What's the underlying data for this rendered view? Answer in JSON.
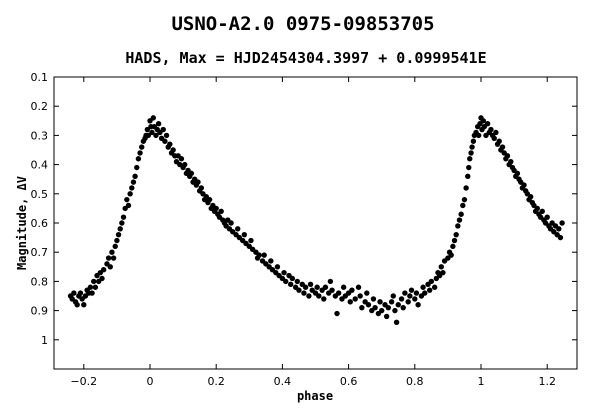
{
  "chart_data": {
    "type": "scatter",
    "title": "USNO-A2.0 0975-09853705",
    "subtitle": "HADS, Max = HJD2454304.3997 + 0.0999541E",
    "xlabel": "phase",
    "ylabel": "Magnitude, ΔV",
    "xlim": [
      -0.29,
      1.29
    ],
    "ylim": [
      0.1,
      1.1
    ],
    "y_inverted": true,
    "grid": false,
    "legend": "none",
    "marker_color": "#000000",
    "x_ticks": [
      -0.2,
      0,
      0.2,
      0.4,
      0.6,
      0.8,
      1,
      1.2
    ],
    "x_tick_labels": [
      "−0.2",
      "0",
      "0.2",
      "0.4",
      "0.6",
      "0.8",
      "1",
      "1.2"
    ],
    "y_ticks": [
      0.1,
      0.2,
      0.3,
      0.4,
      0.5,
      0.6,
      0.7,
      0.8,
      0.9,
      1
    ],
    "y_tick_labels": [
      "0.1",
      "0.2",
      "0.3",
      "0.4",
      "0.5",
      "0.6",
      "0.7",
      "0.8",
      "0.9",
      "1"
    ],
    "series": [
      {
        "points": [
          [
            -0.24,
            0.85
          ],
          [
            -0.235,
            0.86
          ],
          [
            -0.23,
            0.84
          ],
          [
            -0.225,
            0.87
          ],
          [
            -0.22,
            0.88
          ],
          [
            -0.215,
            0.85
          ],
          [
            -0.21,
            0.84
          ],
          [
            -0.205,
            0.86
          ],
          [
            -0.2,
            0.88
          ],
          [
            -0.195,
            0.85
          ],
          [
            -0.19,
            0.83
          ],
          [
            -0.185,
            0.84
          ],
          [
            -0.18,
            0.82
          ],
          [
            -0.175,
            0.84
          ],
          [
            -0.17,
            0.8
          ],
          [
            -0.165,
            0.82
          ],
          [
            -0.16,
            0.78
          ],
          [
            -0.155,
            0.8
          ],
          [
            -0.15,
            0.77
          ],
          [
            -0.145,
            0.79
          ],
          [
            -0.14,
            0.76
          ],
          [
            -0.13,
            0.74
          ],
          [
            -0.125,
            0.72
          ],
          [
            -0.12,
            0.75
          ],
          [
            -0.115,
            0.7
          ],
          [
            -0.11,
            0.72
          ],
          [
            -0.105,
            0.68
          ],
          [
            -0.1,
            0.66
          ],
          [
            -0.095,
            0.64
          ],
          [
            -0.09,
            0.62
          ],
          [
            -0.085,
            0.6
          ],
          [
            -0.08,
            0.58
          ],
          [
            -0.075,
            0.55
          ],
          [
            -0.07,
            0.52
          ],
          [
            -0.065,
            0.54
          ],
          [
            -0.06,
            0.5
          ],
          [
            -0.055,
            0.48
          ],
          [
            -0.05,
            0.46
          ],
          [
            -0.045,
            0.44
          ],
          [
            -0.04,
            0.41
          ],
          [
            -0.035,
            0.38
          ],
          [
            -0.03,
            0.36
          ],
          [
            -0.025,
            0.34
          ],
          [
            -0.02,
            0.32
          ],
          [
            -0.015,
            0.31
          ],
          [
            -0.012,
            0.3
          ],
          [
            -0.008,
            0.28
          ],
          [
            -0.005,
            0.3
          ],
          [
            0.0,
            0.25
          ],
          [
            0.003,
            0.27
          ],
          [
            0.006,
            0.29
          ],
          [
            0.01,
            0.24
          ],
          [
            0.013,
            0.27
          ],
          [
            0.018,
            0.3
          ],
          [
            0.022,
            0.28
          ],
          [
            0.026,
            0.26
          ],
          [
            0.03,
            0.29
          ],
          [
            0.035,
            0.31
          ],
          [
            0.04,
            0.28
          ],
          [
            0.045,
            0.32
          ],
          [
            0.05,
            0.3
          ],
          [
            0.055,
            0.34
          ],
          [
            0.06,
            0.33
          ],
          [
            0.065,
            0.36
          ],
          [
            0.07,
            0.35
          ],
          [
            0.075,
            0.37
          ],
          [
            0.08,
            0.39
          ],
          [
            0.085,
            0.37
          ],
          [
            0.09,
            0.4
          ],
          [
            0.095,
            0.38
          ],
          [
            0.1,
            0.41
          ],
          [
            0.105,
            0.4
          ],
          [
            0.11,
            0.43
          ],
          [
            0.115,
            0.42
          ],
          [
            0.12,
            0.44
          ],
          [
            0.125,
            0.43
          ],
          [
            0.13,
            0.46
          ],
          [
            0.135,
            0.45
          ],
          [
            0.14,
            0.47
          ],
          [
            0.145,
            0.46
          ],
          [
            0.15,
            0.49
          ],
          [
            0.155,
            0.48
          ],
          [
            0.16,
            0.5
          ],
          [
            0.165,
            0.52
          ],
          [
            0.17,
            0.51
          ],
          [
            0.175,
            0.53
          ],
          [
            0.18,
            0.52
          ],
          [
            0.185,
            0.55
          ],
          [
            0.19,
            0.54
          ],
          [
            0.195,
            0.56
          ],
          [
            0.2,
            0.55
          ],
          [
            0.205,
            0.57
          ],
          [
            0.21,
            0.58
          ],
          [
            0.215,
            0.56
          ],
          [
            0.22,
            0.59
          ],
          [
            0.225,
            0.6
          ],
          [
            0.23,
            0.61
          ],
          [
            0.235,
            0.59
          ],
          [
            0.24,
            0.62
          ],
          [
            0.245,
            0.6
          ],
          [
            0.25,
            0.63
          ],
          [
            0.26,
            0.64
          ],
          [
            0.265,
            0.62
          ],
          [
            0.27,
            0.65
          ],
          [
            0.28,
            0.66
          ],
          [
            0.285,
            0.64
          ],
          [
            0.29,
            0.67
          ],
          [
            0.3,
            0.68
          ],
          [
            0.305,
            0.66
          ],
          [
            0.31,
            0.69
          ],
          [
            0.32,
            0.7
          ],
          [
            0.325,
            0.72
          ],
          [
            0.33,
            0.71
          ],
          [
            0.34,
            0.73
          ],
          [
            0.345,
            0.71
          ],
          [
            0.35,
            0.74
          ],
          [
            0.36,
            0.75
          ],
          [
            0.365,
            0.73
          ],
          [
            0.37,
            0.76
          ],
          [
            0.38,
            0.77
          ],
          [
            0.385,
            0.75
          ],
          [
            0.39,
            0.78
          ],
          [
            0.4,
            0.79
          ],
          [
            0.405,
            0.77
          ],
          [
            0.41,
            0.8
          ],
          [
            0.42,
            0.78
          ],
          [
            0.425,
            0.81
          ],
          [
            0.43,
            0.79
          ],
          [
            0.44,
            0.82
          ],
          [
            0.445,
            0.8
          ],
          [
            0.45,
            0.83
          ],
          [
            0.46,
            0.81
          ],
          [
            0.465,
            0.84
          ],
          [
            0.47,
            0.82
          ],
          [
            0.48,
            0.85
          ],
          [
            0.485,
            0.81
          ],
          [
            0.49,
            0.83
          ],
          [
            0.5,
            0.84
          ],
          [
            0.505,
            0.82
          ],
          [
            0.51,
            0.85
          ],
          [
            0.52,
            0.83
          ],
          [
            0.525,
            0.86
          ],
          [
            0.53,
            0.82
          ],
          [
            0.54,
            0.84
          ],
          [
            0.545,
            0.8
          ],
          [
            0.55,
            0.83
          ],
          [
            0.56,
            0.85
          ],
          [
            0.565,
            0.91
          ],
          [
            0.57,
            0.84
          ],
          [
            0.58,
            0.86
          ],
          [
            0.585,
            0.82
          ],
          [
            0.59,
            0.85
          ],
          [
            0.6,
            0.84
          ],
          [
            0.605,
            0.87
          ],
          [
            0.61,
            0.83
          ],
          [
            0.62,
            0.86
          ],
          [
            0.63,
            0.82
          ],
          [
            0.635,
            0.85
          ],
          [
            0.64,
            0.89
          ],
          [
            0.65,
            0.87
          ],
          [
            0.655,
            0.84
          ],
          [
            0.66,
            0.88
          ],
          [
            0.67,
            0.9
          ],
          [
            0.675,
            0.86
          ],
          [
            0.68,
            0.89
          ],
          [
            0.69,
            0.91
          ],
          [
            0.695,
            0.87
          ],
          [
            0.7,
            0.9
          ],
          [
            0.71,
            0.88
          ],
          [
            0.715,
            0.92
          ],
          [
            0.72,
            0.89
          ],
          [
            0.73,
            0.87
          ],
          [
            0.735,
            0.85
          ],
          [
            0.74,
            0.9
          ],
          [
            0.745,
            0.94
          ],
          [
            0.75,
            0.88
          ],
          [
            0.76,
            0.86
          ],
          [
            0.765,
            0.89
          ],
          [
            0.77,
            0.84
          ],
          [
            0.78,
            0.87
          ],
          [
            0.785,
            0.85
          ],
          [
            0.79,
            0.83
          ],
          [
            0.8,
            0.86
          ],
          [
            0.805,
            0.84
          ],
          [
            0.81,
            0.88
          ],
          [
            0.82,
            0.85
          ],
          [
            0.825,
            0.82
          ],
          [
            0.83,
            0.84
          ],
          [
            0.84,
            0.81
          ],
          [
            0.845,
            0.83
          ],
          [
            0.85,
            0.8
          ],
          [
            0.86,
            0.82
          ],
          [
            0.865,
            0.79
          ],
          [
            0.87,
            0.77
          ],
          [
            0.875,
            0.78
          ],
          [
            0.88,
            0.75
          ],
          [
            0.885,
            0.77
          ],
          [
            0.89,
            0.73
          ],
          [
            0.9,
            0.72
          ],
          [
            0.905,
            0.7
          ],
          [
            0.91,
            0.71
          ],
          [
            0.915,
            0.68
          ],
          [
            0.92,
            0.66
          ],
          [
            0.925,
            0.64
          ],
          [
            0.93,
            0.61
          ],
          [
            0.935,
            0.59
          ],
          [
            0.94,
            0.57
          ],
          [
            0.945,
            0.54
          ],
          [
            0.95,
            0.52
          ],
          [
            0.955,
            0.48
          ],
          [
            0.96,
            0.44
          ],
          [
            0.963,
            0.41
          ],
          [
            0.966,
            0.38
          ],
          [
            0.97,
            0.36
          ],
          [
            0.973,
            0.34
          ],
          [
            0.977,
            0.32
          ],
          [
            0.98,
            0.3
          ],
          [
            0.985,
            0.29
          ],
          [
            0.99,
            0.27
          ],
          [
            0.993,
            0.3
          ],
          [
            0.997,
            0.26
          ],
          [
            1.0,
            0.24
          ],
          [
            1.003,
            0.28
          ],
          [
            1.007,
            0.25
          ],
          [
            1.01,
            0.27
          ],
          [
            1.015,
            0.3
          ],
          [
            1.02,
            0.26
          ],
          [
            1.025,
            0.29
          ],
          [
            1.03,
            0.28
          ],
          [
            1.035,
            0.3
          ],
          [
            1.04,
            0.31
          ],
          [
            1.045,
            0.29
          ],
          [
            1.05,
            0.33
          ],
          [
            1.055,
            0.32
          ],
          [
            1.06,
            0.35
          ],
          [
            1.065,
            0.34
          ],
          [
            1.07,
            0.36
          ],
          [
            1.075,
            0.38
          ],
          [
            1.08,
            0.37
          ],
          [
            1.085,
            0.4
          ],
          [
            1.09,
            0.39
          ],
          [
            1.095,
            0.41
          ],
          [
            1.1,
            0.42
          ],
          [
            1.105,
            0.44
          ],
          [
            1.11,
            0.43
          ],
          [
            1.115,
            0.45
          ],
          [
            1.12,
            0.46
          ],
          [
            1.125,
            0.48
          ],
          [
            1.13,
            0.47
          ],
          [
            1.135,
            0.49
          ],
          [
            1.14,
            0.5
          ],
          [
            1.145,
            0.52
          ],
          [
            1.15,
            0.51
          ],
          [
            1.155,
            0.53
          ],
          [
            1.16,
            0.54
          ],
          [
            1.165,
            0.56
          ],
          [
            1.17,
            0.55
          ],
          [
            1.175,
            0.57
          ],
          [
            1.18,
            0.58
          ],
          [
            1.185,
            0.56
          ],
          [
            1.19,
            0.59
          ],
          [
            1.195,
            0.6
          ],
          [
            1.2,
            0.58
          ],
          [
            1.205,
            0.61
          ],
          [
            1.21,
            0.62
          ],
          [
            1.215,
            0.6
          ],
          [
            1.22,
            0.63
          ],
          [
            1.225,
            0.61
          ],
          [
            1.23,
            0.64
          ],
          [
            1.235,
            0.62
          ],
          [
            1.24,
            0.65
          ],
          [
            1.245,
            0.6
          ]
        ]
      }
    ]
  }
}
